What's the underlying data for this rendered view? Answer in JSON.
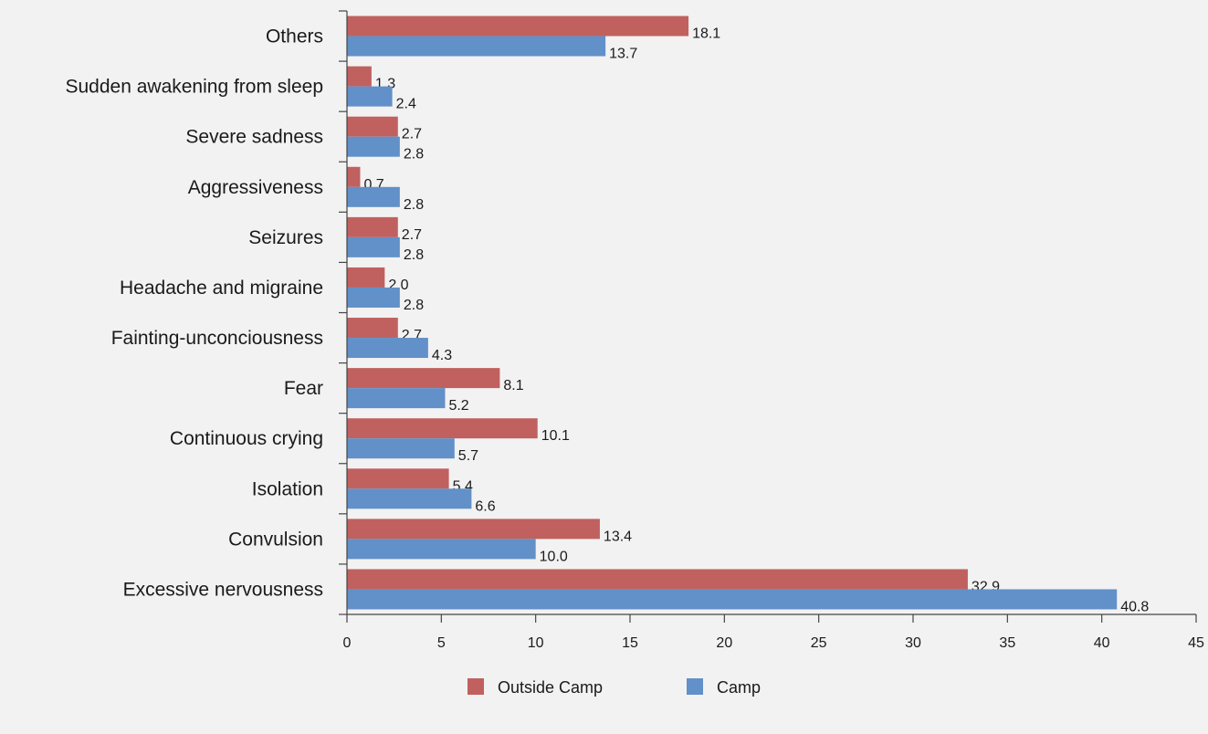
{
  "chart_data": {
    "type": "bar",
    "orientation": "horizontal",
    "title": "",
    "xlabel": "",
    "ylabel": "",
    "xlim": [
      0,
      45
    ],
    "xticks": [
      0,
      5,
      10,
      15,
      20,
      25,
      30,
      35,
      40,
      45
    ],
    "grid": false,
    "legend_position": "bottom-center",
    "categories": [
      "Others",
      "Sudden awakening from sleep",
      "Severe sadness",
      "Aggressiveness",
      "Seizures",
      "Headache and migraine",
      "Fainting-unconciousness",
      "Fear",
      "Continuous crying",
      "Isolation",
      "Convulsion",
      "Excessive nervousness"
    ],
    "series": [
      {
        "name": "Outside Camp",
        "color": "#c0615f",
        "values": [
          18.1,
          1.3,
          2.7,
          0.7,
          2.7,
          2.0,
          2.7,
          8.1,
          10.1,
          5.4,
          13.4,
          32.9
        ],
        "labels": [
          "18.1",
          "1.3",
          "2.7",
          "0.7",
          "2.7",
          "2.0",
          "2.7",
          "8.1",
          "10.1",
          "5.4",
          "13.4",
          "32.9"
        ]
      },
      {
        "name": "Camp",
        "color": "#6290c8",
        "values": [
          13.7,
          2.4,
          2.8,
          2.8,
          2.8,
          2.8,
          4.3,
          5.2,
          5.7,
          6.6,
          10.0,
          40.8
        ],
        "labels": [
          "13.7",
          "2.4",
          "2.8",
          "2.8",
          "2.8",
          "2.8",
          "4.3",
          "5.2",
          "5.7",
          "6.6",
          "10.0",
          "40.8"
        ]
      }
    ]
  }
}
